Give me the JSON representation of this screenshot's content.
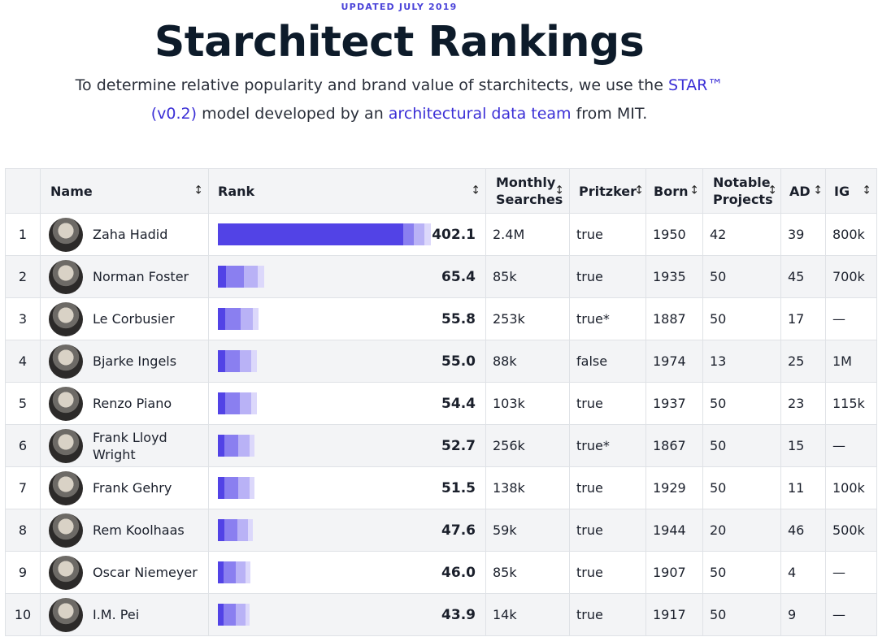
{
  "header": {
    "kicker": "UPDATED JULY 2019",
    "title": "Starchitect Rankings",
    "intro_before": "To determine relative popularity and brand value of starchitects, we use the ",
    "intro_link1": "STAR™ (v0.2)",
    "intro_middle": " model developed by an ",
    "intro_link2": "architectural data team",
    "intro_after": " from MIT."
  },
  "table": {
    "columns": {
      "num": "",
      "name": "Name",
      "rank": "Rank",
      "searches": "Monthly Searches",
      "pritzker": "Pritzker",
      "born": "Born",
      "projects": "Notable Projects",
      "ad": "AD",
      "ig": "IG"
    },
    "sort_icon": "↕",
    "rows": [
      {
        "num": "1",
        "name": "Zaha Hadid",
        "rank": "402.1",
        "rank_value": 402.1,
        "searches": "2.4M",
        "pritzker": "true",
        "born": "1950",
        "projects": "42",
        "ad": "39",
        "ig": "800k"
      },
      {
        "num": "2",
        "name": "Norman Foster",
        "rank": "65.4",
        "rank_value": 65.4,
        "searches": "85k",
        "pritzker": "true",
        "born": "1935",
        "projects": "50",
        "ad": "45",
        "ig": "700k"
      },
      {
        "num": "3",
        "name": "Le Corbusier",
        "rank": "55.8",
        "rank_value": 55.8,
        "searches": "253k",
        "pritzker": "true*",
        "born": "1887",
        "projects": "50",
        "ad": "17",
        "ig": "—"
      },
      {
        "num": "4",
        "name": "Bjarke Ingels",
        "rank": "55.0",
        "rank_value": 55.0,
        "searches": "88k",
        "pritzker": "false",
        "born": "1974",
        "projects": "13",
        "ad": "25",
        "ig": "1M"
      },
      {
        "num": "5",
        "name": "Renzo Piano",
        "rank": "54.4",
        "rank_value": 54.4,
        "searches": "103k",
        "pritzker": "true",
        "born": "1937",
        "projects": "50",
        "ad": "23",
        "ig": "115k"
      },
      {
        "num": "6",
        "name": "Frank Lloyd Wright",
        "rank": "52.7",
        "rank_value": 52.7,
        "searches": "256k",
        "pritzker": "true*",
        "born": "1867",
        "projects": "50",
        "ad": "15",
        "ig": "—"
      },
      {
        "num": "7",
        "name": "Frank Gehry",
        "rank": "51.5",
        "rank_value": 51.5,
        "searches": "138k",
        "pritzker": "true",
        "born": "1929",
        "projects": "50",
        "ad": "11",
        "ig": "100k"
      },
      {
        "num": "8",
        "name": "Rem Koolhaas",
        "rank": "47.6",
        "rank_value": 47.6,
        "searches": "59k",
        "pritzker": "true",
        "born": "1944",
        "projects": "20",
        "ad": "46",
        "ig": "500k"
      },
      {
        "num": "9",
        "name": "Oscar Niemeyer",
        "rank": "46.0",
        "rank_value": 46.0,
        "searches": "85k",
        "pritzker": "true",
        "born": "1907",
        "projects": "50",
        "ad": "4",
        "ig": "—"
      },
      {
        "num": "10",
        "name": "I.M. Pei",
        "rank": "43.9",
        "rank_value": 43.9,
        "searches": "14k",
        "pritzker": "true",
        "born": "1917",
        "projects": "50",
        "ad": "9",
        "ig": "—"
      }
    ]
  },
  "colors": {
    "bar_main": "#5243e6",
    "bar_mid": "#8a7ff0",
    "bar_light": "#b9b2f6",
    "bar_faint": "#dcd8fb",
    "link": "#3b2fd6"
  }
}
